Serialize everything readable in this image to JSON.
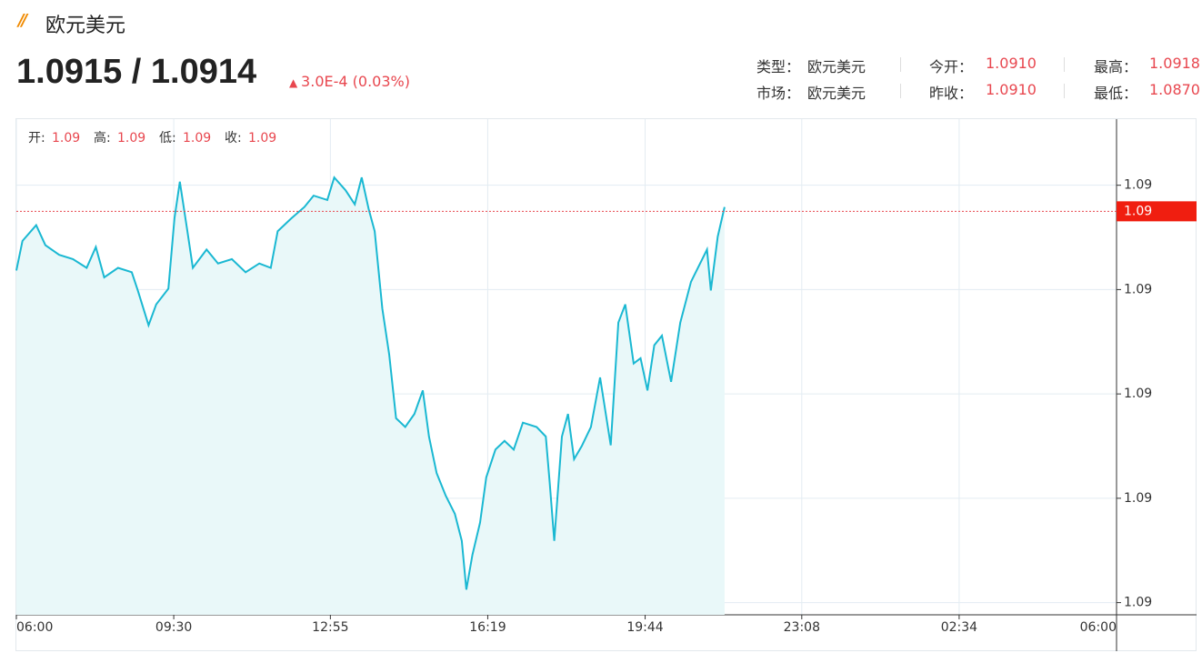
{
  "header": {
    "title": "欧元美元"
  },
  "quote": {
    "price": "1.0915 / 1.0914",
    "change": "3.0E-4 (0.03%)"
  },
  "info": [
    [
      {
        "label": "类型：",
        "value": "欧元美元"
      },
      {
        "label": "今开：",
        "value": "1.0910"
      },
      {
        "label": "最高：",
        "value": "1.0918"
      }
    ],
    [
      {
        "label": "市场：",
        "value": "欧元美元"
      },
      {
        "label": "昨收：",
        "value": "1.0910"
      },
      {
        "label": "最低：",
        "value": "1.0870"
      }
    ]
  ],
  "chart_data": {
    "type": "line",
    "ohlc": [
      {
        "label": "开:",
        "value": "1.09"
      },
      {
        "label": "高:",
        "value": "1.09"
      },
      {
        "label": "低:",
        "value": "1.09"
      },
      {
        "label": "收:",
        "value": "1.09"
      }
    ],
    "x": [
      0,
      8,
      26,
      38,
      56,
      74,
      92,
      104,
      115,
      133,
      151,
      159,
      173,
      183,
      199,
      207,
      214,
      223,
      231,
      249,
      264,
      282,
      300,
      318,
      333,
      342,
      360,
      377,
      389,
      407,
      416,
      431,
      443,
      452,
      461,
      469,
      479,
      488,
      497,
      509,
      521,
      532,
      540,
      550,
      562,
      574,
      583,
      589,
      597,
      607,
      615,
      627,
      639,
      651,
      663,
      681,
      693,
      698,
      704,
      714,
      722,
      730,
      740,
      752,
      764,
      778,
      788,
      797,
      808,
      817,
      826,
      835,
      845,
      857,
      869,
      883,
      895,
      904,
      909,
      918,
      927
    ],
    "values": [
      1.09072,
      1.09106,
      1.09124,
      1.09101,
      1.0909,
      1.09085,
      1.09075,
      1.09099,
      1.09064,
      1.09075,
      1.0907,
      1.09049,
      1.09009,
      1.09033,
      1.09051,
      1.09132,
      1.09174,
      1.09122,
      1.09075,
      1.09096,
      1.0908,
      1.09085,
      1.0907,
      1.0908,
      1.09075,
      1.09117,
      1.09132,
      1.09145,
      1.09158,
      1.09153,
      1.09179,
      1.09164,
      1.09148,
      1.09179,
      1.09143,
      1.09117,
      1.09028,
      1.08975,
      1.08902,
      1.08892,
      1.08907,
      1.08934,
      1.08881,
      1.08839,
      1.08813,
      1.08792,
      1.08761,
      1.08705,
      1.08745,
      1.08782,
      1.08834,
      1.08866,
      1.08876,
      1.08866,
      1.08897,
      1.08892,
      1.08881,
      1.08829,
      1.08761,
      1.08881,
      1.08907,
      1.08855,
      1.0887,
      1.08892,
      1.08949,
      1.08871,
      1.09012,
      1.09033,
      1.08965,
      1.08971,
      1.08934,
      1.08986,
      1.08997,
      1.08944,
      1.09012,
      1.09059,
      1.0908,
      1.09096,
      1.09049,
      1.09111,
      1.09145
    ],
    "color": "#1ab8d2",
    "fill": "#e9f8f9",
    "xlim": [
      0,
      1440
    ],
    "xticks": [
      {
        "value": 0,
        "label": "06:00"
      },
      {
        "value": 206,
        "label": "09:30"
      },
      {
        "value": 411,
        "label": "12:55"
      },
      {
        "value": 617,
        "label": "16:19"
      },
      {
        "value": 823,
        "label": "19:44"
      },
      {
        "value": 1028,
        "label": "23:08"
      },
      {
        "value": 1234,
        "label": "02:34"
      },
      {
        "value": 1440,
        "label": "06:00"
      }
    ],
    "ylim": [
      1.08676,
      1.09246
    ],
    "yticks": [
      {
        "value": 1.0869,
        "label": "1.09"
      },
      {
        "value": 1.0881,
        "label": "1.09"
      },
      {
        "value": 1.0893,
        "label": "1.09"
      },
      {
        "value": 1.0905,
        "label": "1.09"
      },
      {
        "value": 1.0917,
        "label": "1.09"
      }
    ],
    "current": {
      "value": 1.0914,
      "label": "1.09"
    },
    "grid": true
  }
}
